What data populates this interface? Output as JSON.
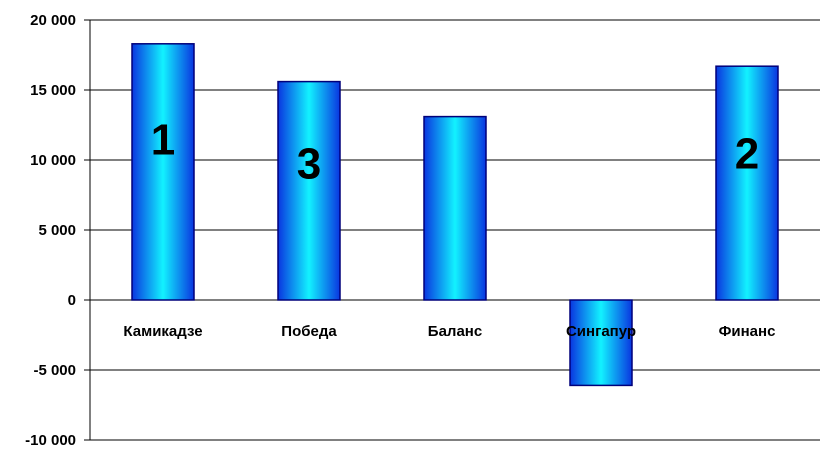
{
  "chart_data": {
    "type": "bar",
    "categories": [
      "Камикадзе",
      "Победа",
      "Баланс",
      "Сингапур",
      "Финанс"
    ],
    "values": [
      18300,
      15600,
      13100,
      -6100,
      16700
    ],
    "bar_labels": [
      "1",
      "3",
      "",
      "",
      "2"
    ],
    "ylim": [
      -10000,
      20000
    ],
    "yticks": [
      20000,
      15000,
      10000,
      5000,
      0,
      -5000,
      -10000
    ],
    "ytick_labels": [
      "20 000",
      "15 000",
      "10 000",
      "5 000",
      "0",
      "-5 000",
      "-10 000"
    ],
    "title": "",
    "xlabel": "",
    "ylabel": "",
    "grid": true,
    "legend": "none",
    "colors": {
      "bar_edge": "#00007a",
      "bar_dark": "#0a36e0",
      "bar_light": "#12f2ff",
      "gridline": "#000000",
      "axis": "#000000"
    }
  }
}
